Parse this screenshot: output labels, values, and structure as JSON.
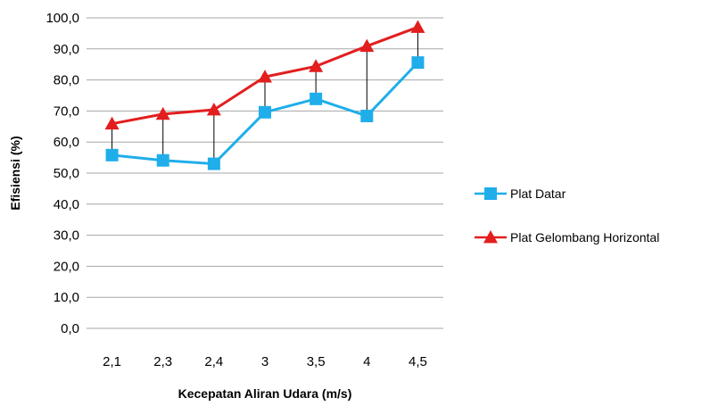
{
  "chart_data": {
    "type": "line",
    "categories": [
      "2,1",
      "2,3",
      "2,4",
      "3",
      "3,5",
      "4",
      "4,5"
    ],
    "series": [
      {
        "name": "Plat Datar",
        "values": [
          55.8,
          54.1,
          53.0,
          69.6,
          73.9,
          68.4,
          85.6
        ],
        "color": "#1faeea",
        "marker": "square"
      },
      {
        "name": "Plat Gelombang Horizontal",
        "values": [
          65.9,
          69.0,
          70.4,
          81.0,
          84.4,
          90.9,
          97.0
        ],
        "color": "#e31e1e",
        "marker": "triangle"
      }
    ],
    "y_ticks": [
      "0,0",
      "10,0",
      "20,0",
      "30,0",
      "40,0",
      "50,0",
      "60,0",
      "70,0",
      "80,0",
      "90,0",
      "100,0"
    ],
    "ylim": [
      0,
      100
    ],
    "xlabel": "Kecepatan Aliran Udara (m/s)",
    "ylabel": "Efisiensi (%)",
    "grid": true,
    "drop_lines": true,
    "legend_position": "right"
  }
}
